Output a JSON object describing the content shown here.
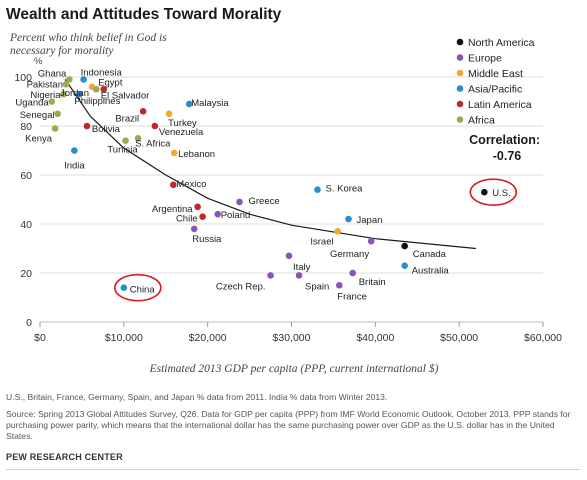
{
  "title": "Wealth and Attitudes Toward Morality",
  "subtitle": "Percent who think belief in God is necessary for morality",
  "notes": [
    "U.S., Britain, France, Germany, Spain, and Japan % data from 2011. India % data from Winter 2013.",
    "Source: Spring 2013 Global Attitudes Survey, Q26. Data for GDP per capita (PPP) from IMF World Economic Outlook, October 2013. PPP stands for purchasing power parity, which means that the international dollar has the same purchasing power over GDP as the U.S. dollar has in the United States."
  ],
  "credit": "PEW RESEARCH CENTER",
  "chart_data": {
    "type": "scatter",
    "title": "Wealth and Attitudes Toward Morality",
    "ylabel": "%",
    "xlabel": "Estimated 2013 GDP per capita (PPP, current international $)",
    "xlim": [
      0,
      60000
    ],
    "ylim": [
      0,
      100
    ],
    "xticks": [
      0,
      10000,
      20000,
      30000,
      40000,
      50000,
      60000
    ],
    "xtick_labels": [
      "$0",
      "$10,000",
      "$20,000",
      "$30,000",
      "$40,000",
      "$50,000",
      "$60,000"
    ],
    "yticks": [
      0,
      20,
      40,
      60,
      80,
      100
    ],
    "ytick_labels": [
      "0",
      "20",
      "40",
      "60",
      "80",
      "100"
    ],
    "grid": "horizontal",
    "legend_position": "top-right",
    "trend": {
      "type": "curve",
      "color": "#1a1a1a",
      "points": [
        [
          3000,
          99
        ],
        [
          6000,
          84
        ],
        [
          10000,
          71
        ],
        [
          15000,
          60
        ],
        [
          20000,
          50.5
        ],
        [
          25000,
          44
        ],
        [
          30000,
          39.5
        ],
        [
          40000,
          34
        ],
        [
          52000,
          30
        ]
      ]
    },
    "correlation_label": "Correlation:",
    "correlation_value": "-0.76",
    "series": [
      {
        "name": "North America",
        "color": "#111111",
        "points": [
          {
            "label": "U.S.",
            "x": 53000,
            "y": 53
          },
          {
            "label": "Canada",
            "x": 43500,
            "y": 31
          }
        ]
      },
      {
        "name": "Europe",
        "color": "#8855bb",
        "points": [
          {
            "label": "Greece",
            "x": 23800,
            "y": 49
          },
          {
            "label": "Poland",
            "x": 21200,
            "y": 44
          },
          {
            "label": "Russia",
            "x": 18400,
            "y": 38
          },
          {
            "label": "Italy",
            "x": 29700,
            "y": 27
          },
          {
            "label": "Czech Rep.",
            "x": 27500,
            "y": 19
          },
          {
            "label": "Spain",
            "x": 30900,
            "y": 19
          },
          {
            "label": "Germany",
            "x": 39500,
            "y": 33
          },
          {
            "label": "Britain",
            "x": 37300,
            "y": 20
          },
          {
            "label": "France",
            "x": 35700,
            "y": 15
          }
        ]
      },
      {
        "name": "Middle East",
        "color": "#f0a830",
        "points": [
          {
            "label": "Jordan",
            "x": 6200,
            "y": 96
          },
          {
            "label": "Turkey",
            "x": 15400,
            "y": 85
          },
          {
            "label": "Lebanon",
            "x": 16000,
            "y": 69
          },
          {
            "label": "Israel",
            "x": 35500,
            "y": 37
          }
        ]
      },
      {
        "name": "Asia/Pacific",
        "color": "#2a8fc9",
        "points": [
          {
            "label": "Indonesia",
            "x": 5200,
            "y": 99
          },
          {
            "label": "Philippines",
            "x": 4700,
            "y": 93
          },
          {
            "label": "Malaysia",
            "x": 17800,
            "y": 89
          },
          {
            "label": "India",
            "x": 4100,
            "y": 70
          },
          {
            "label": "S. Korea",
            "x": 33100,
            "y": 54
          },
          {
            "label": "Japan",
            "x": 36800,
            "y": 42
          },
          {
            "label": "Australia",
            "x": 43500,
            "y": 23
          },
          {
            "label": "China",
            "x": 10000,
            "y": 14
          }
        ]
      },
      {
        "name": "Latin America",
        "color": "#c0282e",
        "points": [
          {
            "label": "El Salvador",
            "x": 7600,
            "y": 95
          },
          {
            "label": "Brazil",
            "x": 12300,
            "y": 86
          },
          {
            "label": "Venezuela",
            "x": 13700,
            "y": 80
          },
          {
            "label": "Bolivia",
            "x": 5600,
            "y": 80
          },
          {
            "label": "Mexico",
            "x": 15900,
            "y": 56
          },
          {
            "label": "Argentina",
            "x": 18800,
            "y": 47
          },
          {
            "label": "Chile",
            "x": 19400,
            "y": 43
          }
        ]
      },
      {
        "name": "Africa",
        "color": "#99aa55",
        "points": [
          {
            "label": "Ghana",
            "x": 3500,
            "y": 99
          },
          {
            "label": "Pakistan",
            "x": 3100,
            "y": 97
          },
          {
            "label": "Egypt",
            "x": 6700,
            "y": 95
          },
          {
            "label": "Nigeria",
            "x": 2800,
            "y": 93
          },
          {
            "label": "Uganda",
            "x": 1400,
            "y": 90
          },
          {
            "label": "Senegal",
            "x": 2100,
            "y": 85
          },
          {
            "label": "Kenya",
            "x": 1800,
            "y": 79
          },
          {
            "label": "Tunisia",
            "x": 10200,
            "y": 74
          },
          {
            "label": "S. Africa",
            "x": 11700,
            "y": 75
          }
        ]
      }
    ],
    "highlighted": [
      "U.S.",
      "China"
    ],
    "highlight_color": "#d42020"
  }
}
